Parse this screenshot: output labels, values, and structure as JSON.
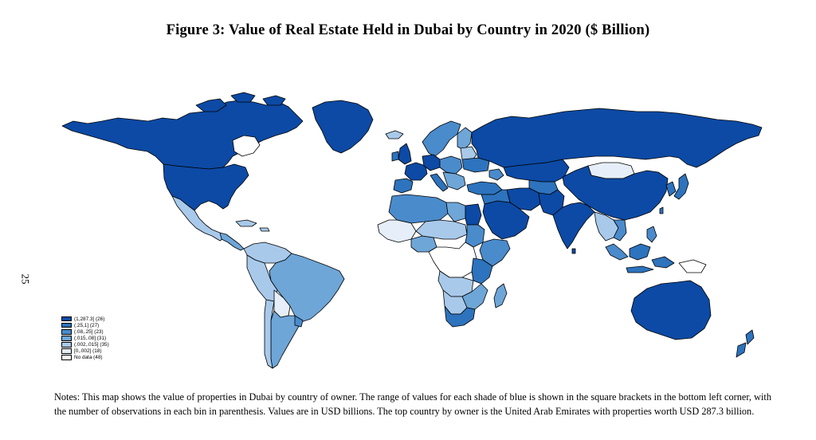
{
  "header": {
    "title": "Figure 3: Value of Real Estate Held in Dubai by Country in 2020 ($ Billion)",
    "page_number": "25"
  },
  "legend": {
    "items": [
      {
        "label": "(1,287.3] (26)",
        "color": "#0c4aa5"
      },
      {
        "label": "(.25,1] (27)",
        "color": "#2d73bd"
      },
      {
        "label": "(.08,.25] (23)",
        "color": "#4a8bcc"
      },
      {
        "label": "(.015,.08] (31)",
        "color": "#6ea6d8"
      },
      {
        "label": "(.002,.015] (35)",
        "color": "#a8c9ea"
      },
      {
        "label": "[0,.002] (18)",
        "color": "#e6eef9"
      },
      {
        "label": "No data (48)",
        "color": "#ffffff"
      }
    ]
  },
  "notes": {
    "text": "Notes: This map shows the value of properties in Dubai by country of owner. The range of values for each shade of blue is shown in the square brackets in the bottom left corner, with the number of observations in each bin in parenthesis. Values are in USD billions. The top country by owner is the United Arab Emirates with properties worth USD 287.3 billion."
  },
  "colors": {
    "bin1": "#0c4aa5",
    "bin2": "#2d73bd",
    "bin3": "#4a8bcc",
    "bin4": "#6ea6d8",
    "bin5": "#a8c9ea",
    "bin6": "#e6eef9",
    "nodata": "#ffffff"
  }
}
